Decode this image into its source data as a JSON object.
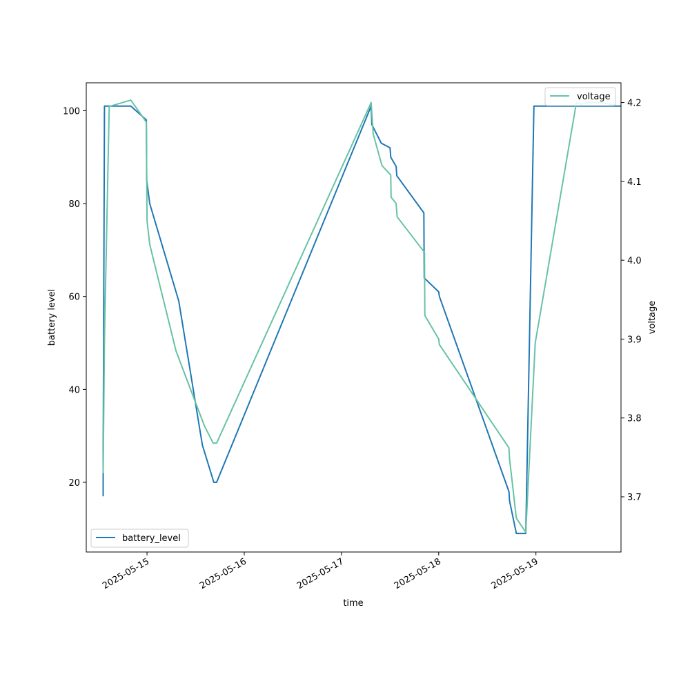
{
  "chart_data": {
    "type": "line",
    "xlabel": "time",
    "ylabel": "battery level",
    "y2label": "voltage",
    "xlim": [
      "2025-05-14 09:00",
      "2025-05-19 21:00"
    ],
    "ylim": [
      5,
      106
    ],
    "y2lim": [
      3.63,
      4.225
    ],
    "grid": false,
    "x_ticks": [
      "2025-05-15",
      "2025-05-16",
      "2025-05-17",
      "2025-05-18",
      "2025-05-19"
    ],
    "y_ticks": [
      20,
      40,
      60,
      80,
      100
    ],
    "y2_ticks": [
      3.7,
      3.8,
      3.9,
      4.0,
      4.1,
      4.2
    ],
    "series": [
      {
        "name": "battery_level",
        "axis": "left",
        "color": "#1f77b4",
        "legend": "bottom-left",
        "points": [
          [
            "2025-05-14 13:10",
            17
          ],
          [
            "2025-05-14 13:10",
            24
          ],
          [
            "2025-05-14 13:30",
            101
          ],
          [
            "2025-05-14 20:00",
            101
          ],
          [
            "2025-05-14 23:50",
            98
          ],
          [
            "2025-05-14 23:55",
            85
          ],
          [
            "2025-05-15 00:40",
            80
          ],
          [
            "2025-05-15 07:50",
            59
          ],
          [
            "2025-05-15 13:40",
            28
          ],
          [
            "2025-05-15 16:30",
            20
          ],
          [
            "2025-05-15 17:10",
            20
          ],
          [
            "2025-05-17 07:20",
            101
          ],
          [
            "2025-05-17 07:30",
            97
          ],
          [
            "2025-05-17 09:50",
            93
          ],
          [
            "2025-05-17 12:00",
            92
          ],
          [
            "2025-05-17 12:10",
            90
          ],
          [
            "2025-05-17 13:30",
            88
          ],
          [
            "2025-05-17 13:40",
            86
          ],
          [
            "2025-05-17 20:20",
            78
          ],
          [
            "2025-05-17 20:25",
            64
          ],
          [
            "2025-05-18 00:00",
            61
          ],
          [
            "2025-05-18 00:10",
            60
          ],
          [
            "2025-05-18 17:20",
            18
          ],
          [
            "2025-05-18 17:30",
            16
          ],
          [
            "2025-05-18 19:10",
            9
          ],
          [
            "2025-05-18 21:30",
            9
          ],
          [
            "2025-05-18 23:30",
            101
          ],
          [
            "2025-05-19 21:00",
            101
          ]
        ]
      },
      {
        "name": "voltage",
        "axis": "right",
        "color": "#66c2a5",
        "legend": "top-right",
        "points": [
          [
            "2025-05-14 13:10",
            3.73
          ],
          [
            "2025-05-14 13:30",
            3.9
          ],
          [
            "2025-05-14 14:40",
            4.195
          ],
          [
            "2025-05-14 20:00",
            4.203
          ],
          [
            "2025-05-14 23:50",
            4.175
          ],
          [
            "2025-05-15 00:00",
            4.05
          ],
          [
            "2025-05-15 00:40",
            4.02
          ],
          [
            "2025-05-15 07:10",
            3.885
          ],
          [
            "2025-05-15 14:10",
            3.79
          ],
          [
            "2025-05-15 16:20",
            3.768
          ],
          [
            "2025-05-15 17:10",
            3.768
          ],
          [
            "2025-05-17 07:20",
            4.2
          ],
          [
            "2025-05-17 07:50",
            4.16
          ],
          [
            "2025-05-17 10:00",
            4.12
          ],
          [
            "2025-05-17 12:10",
            4.108
          ],
          [
            "2025-05-17 12:15",
            4.08
          ],
          [
            "2025-05-17 13:30",
            4.072
          ],
          [
            "2025-05-17 13:45",
            4.055
          ],
          [
            "2025-05-17 20:30",
            4.01
          ],
          [
            "2025-05-17 20:35",
            3.93
          ],
          [
            "2025-05-18 00:00",
            3.9
          ],
          [
            "2025-05-18 00:10",
            3.893
          ],
          [
            "2025-05-18 17:20",
            3.762
          ],
          [
            "2025-05-18 17:30",
            3.748
          ],
          [
            "2025-05-18 19:10",
            3.673
          ],
          [
            "2025-05-18 21:30",
            3.655
          ],
          [
            "2025-05-18 23:50",
            3.895
          ],
          [
            "2025-05-19 10:00",
            4.2
          ],
          [
            "2025-05-19 11:00",
            4.198
          ],
          [
            "2025-05-19 13:00",
            4.2
          ],
          [
            "2025-05-19 16:00",
            4.2
          ],
          [
            "2025-05-19 19:20",
            4.197
          ]
        ]
      }
    ]
  }
}
